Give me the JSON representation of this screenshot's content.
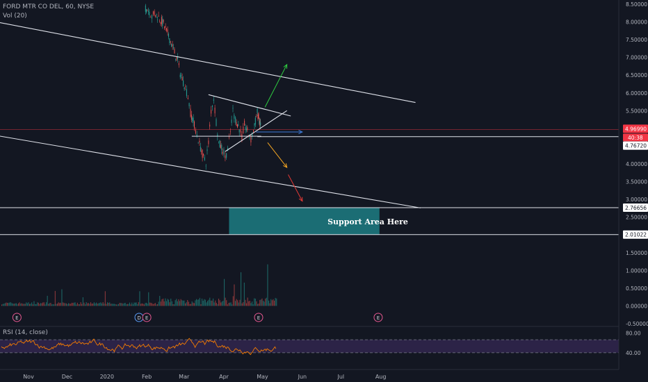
{
  "header": {
    "symbol_line": "FORD MTR CO DEL, 60, NYSE",
    "vol_line": "Vol (20)",
    "rsi_line": "RSI (14, close)"
  },
  "colors": {
    "background": "#131722",
    "axis_text": "#b2b5be",
    "up": "#26a69a",
    "down": "#ef5350",
    "trend_line": "#e0e3eb",
    "support_fill": "#1d7d82",
    "rsi_line": "#f57c00",
    "rsi_band": "#5b3a8c",
    "price_line": "#f23645",
    "arrow_green": "#2ecc40",
    "arrow_blue": "#3d7bd9",
    "arrow_orange": "#f5a623",
    "arrow_red": "#e53935"
  },
  "chart_data": {
    "type": "candlestick",
    "title": "FORD MTR CO DEL, 60, NYSE",
    "price_axis": {
      "ylim": [
        -0.5,
        8.5
      ],
      "ticks": [
        "8.50000",
        "8.00000",
        "7.50000",
        "7.00000",
        "6.50000",
        "6.00000",
        "5.50000",
        "5.00000",
        "4.50000",
        "4.00000",
        "3.50000",
        "3.00000",
        "2.50000",
        "2.00000",
        "1.50000",
        "1.00000",
        "0.50000",
        "0.00000",
        "-0.50000"
      ]
    },
    "time_axis": {
      "labels": [
        "Nov",
        "Dec",
        "2020",
        "Feb",
        "Mar",
        "Apr",
        "May",
        "Jun",
        "Jul",
        "Aug"
      ]
    },
    "price_labels": {
      "last_price": "4.96990",
      "countdown": "40:38",
      "level_low_triangle": "4.76720",
      "support_top": "2.76656",
      "support_bottom": "2.01022"
    },
    "levels": {
      "last_price": 4.9699,
      "triangle_base": 4.7672,
      "support_top": 2.76656,
      "support_bottom": 2.01022
    },
    "support_zone": {
      "label": "Support Area Here",
      "from": 2.01022,
      "to": 2.76656,
      "start": "Apr 5",
      "end": "Jul 31"
    },
    "price_path": [
      {
        "t": "Jan 31",
        "p": 8.4
      },
      {
        "t": "Feb 3",
        "p": 8.3
      },
      {
        "t": "Feb 5",
        "p": 8.15
      },
      {
        "t": "Feb 7",
        "p": 8.25
      },
      {
        "t": "Feb 11",
        "p": 8.1
      },
      {
        "t": "Feb 14",
        "p": 7.95
      },
      {
        "t": "Feb 18",
        "p": 7.6
      },
      {
        "t": "Feb 21",
        "p": 7.3
      },
      {
        "t": "Feb 25",
        "p": 6.9
      },
      {
        "t": "Feb 27",
        "p": 6.55
      },
      {
        "t": "Mar 2",
        "p": 6.15
      },
      {
        "t": "Mar 4",
        "p": 5.9
      },
      {
        "t": "Mar 6",
        "p": 5.45
      },
      {
        "t": "Mar 9",
        "p": 5.1
      },
      {
        "t": "Mar 11",
        "p": 4.8
      },
      {
        "t": "Mar 13",
        "p": 4.55
      },
      {
        "t": "Mar 16",
        "p": 4.2
      },
      {
        "t": "Mar 18",
        "p": 4.05
      },
      {
        "t": "Mar 20",
        "p": 4.6
      },
      {
        "t": "Mar 22",
        "p": 5.5
      },
      {
        "t": "Mar 24",
        "p": 5.85
      },
      {
        "t": "Mar 26",
        "p": 5.2
      },
      {
        "t": "Mar 28",
        "p": 4.6
      },
      {
        "t": "Mar 31",
        "p": 4.4
      },
      {
        "t": "Apr 2",
        "p": 4.2
      },
      {
        "t": "Apr 4",
        "p": 4.4
      },
      {
        "t": "Apr 6",
        "p": 4.9
      },
      {
        "t": "Apr 8",
        "p": 5.5
      },
      {
        "t": "Apr 10",
        "p": 5.25
      },
      {
        "t": "Apr 13",
        "p": 5.0
      },
      {
        "t": "Apr 15",
        "p": 4.75
      },
      {
        "t": "Apr 17",
        "p": 5.1
      },
      {
        "t": "Apr 20",
        "p": 4.85
      },
      {
        "t": "Apr 22",
        "p": 4.7
      },
      {
        "t": "Apr 24",
        "p": 4.95
      },
      {
        "t": "Apr 27",
        "p": 5.45
      },
      {
        "t": "Apr 28",
        "p": 5.3
      },
      {
        "t": "Apr 29",
        "p": 5.15
      },
      {
        "t": "Apr 30",
        "p": 4.97
      }
    ],
    "volume": {
      "ticks": [
        "1.00000",
        "0.50000",
        "0.00000",
        "-0.50000"
      ]
    },
    "rsi": {
      "ticks": [
        "80.00",
        "40.00"
      ],
      "band": [
        30,
        70
      ]
    },
    "annotations": {
      "upper_channel": [
        {
          "t": "Oct 7",
          "p": 8.0
        },
        {
          "t": "Aug 28",
          "p": 5.73
        }
      ],
      "lower_channel": [
        {
          "t": "Oct 7",
          "p": 4.8
        },
        {
          "t": "Sep 1",
          "p": 2.76
        }
      ],
      "triangle_upper": [
        {
          "t": "Mar 20",
          "p": 5.95
        },
        {
          "t": "May 23",
          "p": 5.35
        }
      ],
      "triangle_lower": [
        {
          "t": "Apr 2",
          "p": 4.35
        },
        {
          "t": "May 20",
          "p": 5.5
        }
      ],
      "base_line": [
        {
          "t": "Mar 7",
          "p": 4.78
        },
        {
          "t": "Apr 30",
          "p": 4.78
        }
      ],
      "arrow_up": [
        {
          "t": "May 3",
          "p": 5.6
        },
        {
          "t": "May 20",
          "p": 6.8
        }
      ],
      "arrow_right": [
        {
          "t": "Apr 26",
          "p": 4.9
        },
        {
          "t": "Jun 1",
          "p": 4.9
        }
      ],
      "arrow_mid": [
        {
          "t": "May 5",
          "p": 4.6
        },
        {
          "t": "May 20",
          "p": 3.9
        }
      ],
      "arrow_down": [
        {
          "t": "May 21",
          "p": 3.7
        },
        {
          "t": "Jun 1",
          "p": 2.95
        }
      ]
    },
    "earnings_markers": [
      {
        "t": "Oct 23",
        "label": "E"
      },
      {
        "t": "Jan 26",
        "label": "D"
      },
      {
        "t": "Feb 1",
        "label": "E"
      },
      {
        "t": "Apr 28",
        "label": "E"
      },
      {
        "t": "Jul 30",
        "label": "E"
      }
    ],
    "legend": "none",
    "grid": false
  }
}
